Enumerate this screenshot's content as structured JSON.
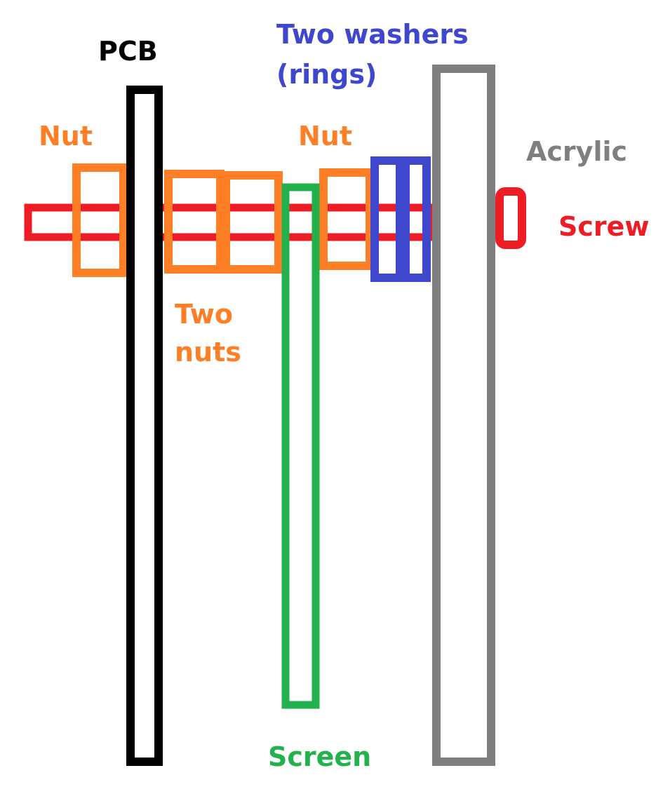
{
  "colors": {
    "screw": "#ee1c24",
    "nut": "#ff7f27",
    "washer": "#3f48cc",
    "pcb": "#000000",
    "screen": "#22b14c",
    "acrylic": "#7f7f7f",
    "background": "#ffffff"
  },
  "labels": {
    "pcb": "PCB",
    "washers_line1": "Two washers",
    "washers_line2": "(rings)",
    "nut_left": "Nut",
    "nut_right": "Nut",
    "acrylic": "Acrylic",
    "screw": "Screw",
    "two_nuts_line1": "Two",
    "two_nuts_line2": "nuts",
    "screen": "Screen"
  }
}
